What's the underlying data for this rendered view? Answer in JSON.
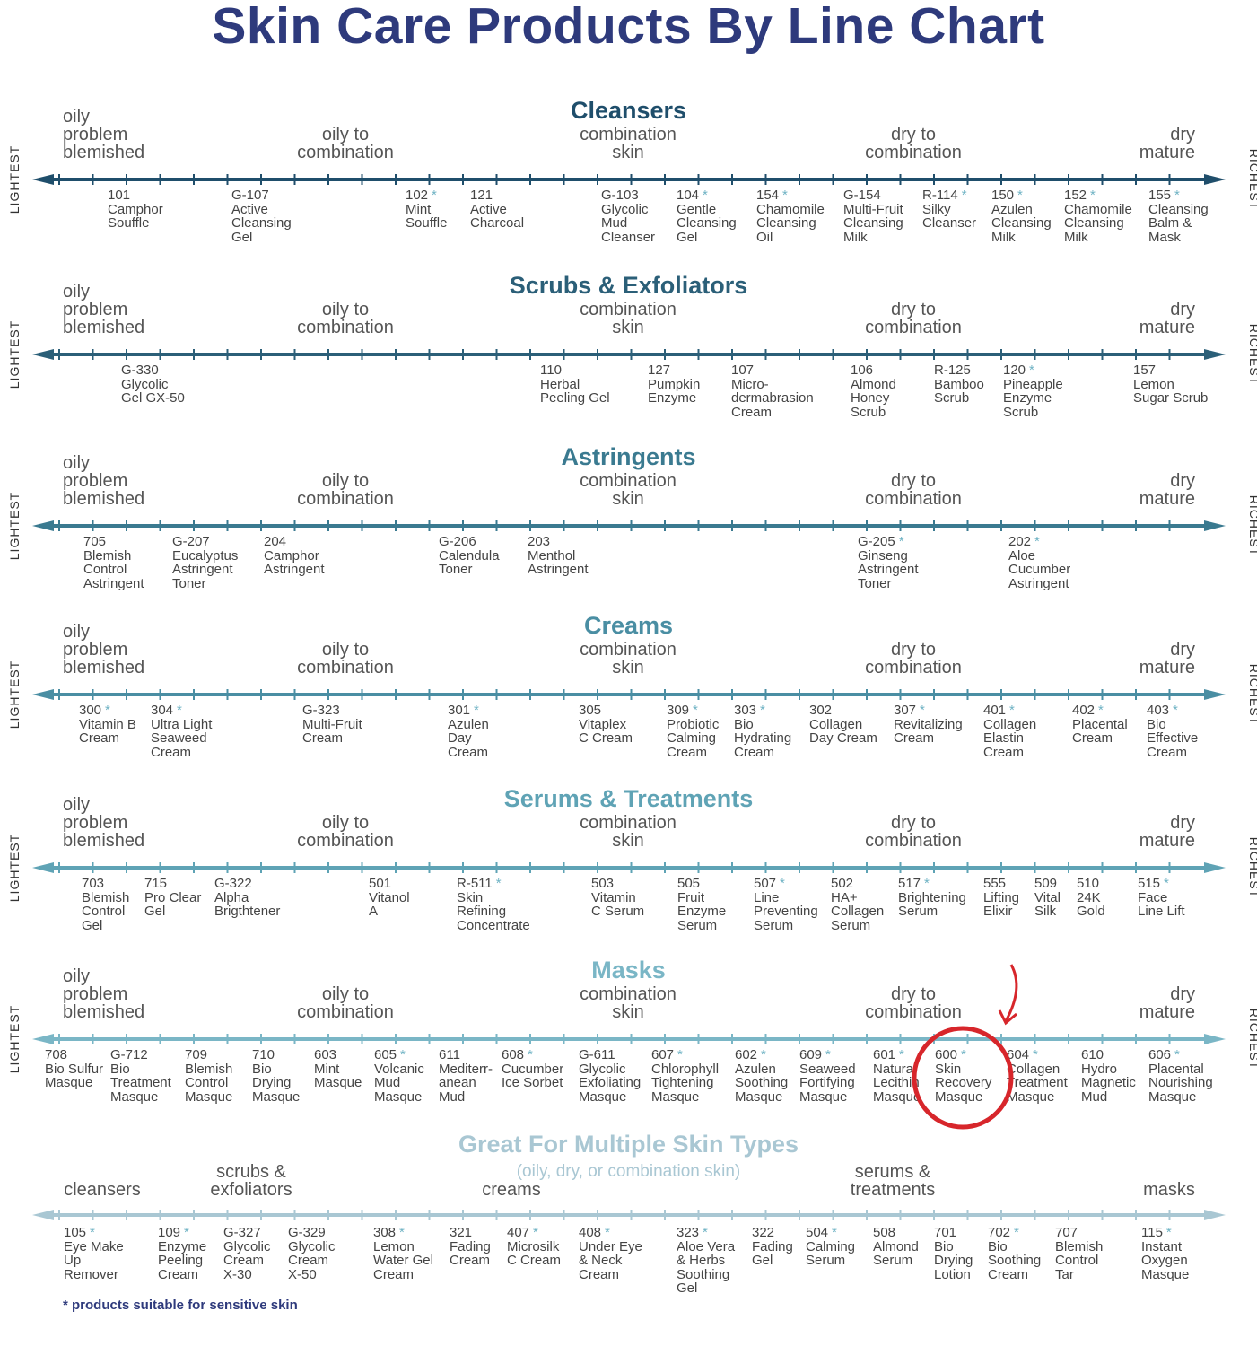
{
  "title": "Skin Care Products By Line Chart",
  "left_end": "LIGHTEST",
  "right_end": "RICHEST",
  "skin_scale": {
    "a": [
      "oily",
      "problem",
      "blemished"
    ],
    "b": [
      "oily to",
      "combination"
    ],
    "c": [
      "combination",
      "skin"
    ],
    "d": [
      "dry to",
      "combination"
    ],
    "e": [
      "dry",
      "mature"
    ]
  },
  "colors": {
    "title": "#2e3a7c",
    "highlight_circle": "#d7262b",
    "star": "#6fb3c4"
  },
  "sections": [
    {
      "name": "Cleansers",
      "color": "#1f4e6b",
      "products": [
        {
          "code": "101",
          "star": false,
          "lines": [
            "Camphor",
            "Souffle"
          ]
        },
        {
          "code": "G-107",
          "star": false,
          "lines": [
            "Active",
            "Cleansing",
            "Gel"
          ]
        },
        {
          "code": "102",
          "star": true,
          "lines": [
            "Mint",
            "Souffle"
          ]
        },
        {
          "code": "121",
          "star": false,
          "lines": [
            "Active",
            "Charcoal"
          ]
        },
        {
          "code": "G-103",
          "star": false,
          "lines": [
            "Glycolic",
            "Mud",
            "Cleanser"
          ]
        },
        {
          "code": "104",
          "star": true,
          "lines": [
            "Gentle",
            "Cleansing",
            "Gel"
          ]
        },
        {
          "code": "154",
          "star": true,
          "lines": [
            "Chamomile",
            "Cleansing",
            "Oil"
          ]
        },
        {
          "code": "G-154",
          "star": false,
          "lines": [
            "Multi-Fruit",
            "Cleansing",
            "Milk"
          ]
        },
        {
          "code": "R-114",
          "star": true,
          "lines": [
            "Silky",
            "Cleanser"
          ]
        },
        {
          "code": "150",
          "star": true,
          "lines": [
            "Azulen",
            "Cleansing",
            "Milk"
          ]
        },
        {
          "code": "152",
          "star": true,
          "lines": [
            "Chamomile",
            "Cleansing",
            "Milk"
          ]
        },
        {
          "code": "155",
          "star": true,
          "lines": [
            "Cleansing",
            "Balm &",
            "Mask"
          ]
        }
      ]
    },
    {
      "name": "Scrubs & Exfoliators",
      "color": "#2b5f78",
      "products": [
        {
          "code": "G-330",
          "star": false,
          "lines": [
            "Glycolic",
            "Gel GX-50"
          ]
        },
        {
          "code": "110",
          "star": false,
          "lines": [
            "Herbal",
            "Peeling Gel"
          ]
        },
        {
          "code": "127",
          "star": false,
          "lines": [
            "Pumpkin",
            "Enzyme"
          ]
        },
        {
          "code": "107",
          "star": false,
          "lines": [
            "Micro-",
            "dermabrasion",
            "Cream"
          ]
        },
        {
          "code": "106",
          "star": false,
          "lines": [
            "Almond",
            "Honey",
            "Scrub"
          ]
        },
        {
          "code": "R-125",
          "star": false,
          "lines": [
            "Bamboo",
            "Scrub"
          ]
        },
        {
          "code": "120",
          "star": true,
          "lines": [
            "Pineapple",
            "Enzyme",
            "Scrub"
          ]
        },
        {
          "code": "157",
          "star": false,
          "lines": [
            "Lemon",
            "Sugar Scrub"
          ]
        }
      ]
    },
    {
      "name": "Astringents",
      "color": "#3a7a90",
      "products": [
        {
          "code": "705",
          "star": false,
          "lines": [
            "Blemish",
            "Control",
            "Astringent"
          ]
        },
        {
          "code": "G-207",
          "star": false,
          "lines": [
            "Eucalyptus",
            "Astringent",
            "Toner"
          ]
        },
        {
          "code": "204",
          "star": false,
          "lines": [
            "Camphor",
            "Astringent"
          ]
        },
        {
          "code": "G-206",
          "star": false,
          "lines": [
            "Calendula",
            "Toner"
          ]
        },
        {
          "code": "203",
          "star": false,
          "lines": [
            "Menthol",
            "Astringent"
          ]
        },
        {
          "code": "G-205",
          "star": true,
          "lines": [
            "Ginseng",
            "Astringent",
            "Toner"
          ]
        },
        {
          "code": "202",
          "star": true,
          "lines": [
            "Aloe",
            "Cucumber",
            "Astringent"
          ]
        }
      ]
    },
    {
      "name": "Creams",
      "color": "#4a8ea3",
      "products": [
        {
          "code": "300",
          "star": true,
          "lines": [
            "Vitamin B",
            "Cream"
          ]
        },
        {
          "code": "304",
          "star": true,
          "lines": [
            "Ultra Light",
            "Seaweed",
            "Cream"
          ]
        },
        {
          "code": "G-323",
          "star": false,
          "lines": [
            "Multi-Fruit",
            "Cream"
          ]
        },
        {
          "code": "301",
          "star": true,
          "lines": [
            "Azulen",
            "Day",
            "Cream"
          ]
        },
        {
          "code": "305",
          "star": false,
          "lines": [
            "Vitaplex",
            "C Cream"
          ]
        },
        {
          "code": "309",
          "star": true,
          "lines": [
            "Probiotic",
            "Calming",
            "Cream"
          ]
        },
        {
          "code": "303",
          "star": true,
          "lines": [
            "Bio",
            "Hydrating",
            "Cream"
          ]
        },
        {
          "code": "302",
          "star": false,
          "lines": [
            "Collagen",
            "Day Cream"
          ]
        },
        {
          "code": "307",
          "star": true,
          "lines": [
            "Revitalizing",
            "Cream"
          ]
        },
        {
          "code": "401",
          "star": true,
          "lines": [
            "Collagen",
            "Elastin",
            "Cream"
          ]
        },
        {
          "code": "402",
          "star": true,
          "lines": [
            "Placental",
            "Cream"
          ]
        },
        {
          "code": "403",
          "star": true,
          "lines": [
            "Bio",
            "Effective",
            "Cream"
          ]
        }
      ]
    },
    {
      "name": "Serums & Treatments",
      "color": "#5fa3b5",
      "products": [
        {
          "code": "703",
          "star": false,
          "lines": [
            "Blemish",
            "Control",
            "Gel"
          ]
        },
        {
          "code": "715",
          "star": false,
          "lines": [
            "Pro Clear",
            "Gel"
          ]
        },
        {
          "code": "G-322",
          "star": false,
          "lines": [
            "Alpha",
            "Brigthtener"
          ]
        },
        {
          "code": "501",
          "star": false,
          "lines": [
            "Vitanol",
            "A"
          ]
        },
        {
          "code": "R-511",
          "star": true,
          "lines": [
            "Skin",
            "Refining",
            "Concentrate"
          ]
        },
        {
          "code": "503",
          "star": false,
          "lines": [
            "Vitamin",
            "C Serum"
          ]
        },
        {
          "code": "505",
          "star": false,
          "lines": [
            "Fruit",
            "Enzyme",
            "Serum"
          ]
        },
        {
          "code": "507",
          "star": true,
          "lines": [
            "Line",
            "Preventing",
            "Serum"
          ]
        },
        {
          "code": "502",
          "star": false,
          "lines": [
            "HA+",
            "Collagen",
            "Serum"
          ]
        },
        {
          "code": "517",
          "star": true,
          "lines": [
            "Brightening",
            "Serum"
          ]
        },
        {
          "code": "555",
          "star": false,
          "lines": [
            "Lifting",
            "Elixir"
          ]
        },
        {
          "code": "509",
          "star": false,
          "lines": [
            "Vital",
            "Silk"
          ]
        },
        {
          "code": "510",
          "star": false,
          "lines": [
            "24K",
            "Gold"
          ]
        },
        {
          "code": "515",
          "star": true,
          "lines": [
            "Face",
            "Line Lift"
          ]
        }
      ]
    },
    {
      "name": "Masks",
      "color": "#7ab6c6",
      "products": [
        {
          "code": "708",
          "star": false,
          "lines": [
            "Bio Sulfur",
            "Masque"
          ]
        },
        {
          "code": "G-712",
          "star": false,
          "lines": [
            "Bio",
            "Treatment",
            "Masque"
          ]
        },
        {
          "code": "709",
          "star": false,
          "lines": [
            "Blemish",
            "Control",
            "Masque"
          ]
        },
        {
          "code": "710",
          "star": false,
          "lines": [
            "Bio",
            "Drying",
            "Masque"
          ]
        },
        {
          "code": "603",
          "star": false,
          "lines": [
            "Mint",
            "Masque"
          ]
        },
        {
          "code": "605",
          "star": true,
          "lines": [
            "Volcanic",
            "Mud",
            "Masque"
          ]
        },
        {
          "code": "611",
          "star": false,
          "lines": [
            "Mediterr-",
            "anean",
            "Mud"
          ]
        },
        {
          "code": "608",
          "star": true,
          "lines": [
            "Cucumber",
            "Ice Sorbet"
          ]
        },
        {
          "code": "G-611",
          "star": false,
          "lines": [
            "Glycolic",
            "Exfoliating",
            "Masque"
          ]
        },
        {
          "code": "607",
          "star": true,
          "lines": [
            "Chlorophyll",
            "Tightening",
            "Masque"
          ]
        },
        {
          "code": "602",
          "star": true,
          "lines": [
            "Azulen",
            "Soothing",
            "Masque"
          ]
        },
        {
          "code": "609",
          "star": true,
          "lines": [
            "Seaweed",
            "Fortifying",
            "Masque"
          ]
        },
        {
          "code": "601",
          "star": true,
          "lines": [
            "Natural",
            "Lecithin",
            "Masque"
          ]
        },
        {
          "code": "600",
          "star": true,
          "lines": [
            "Skin",
            "Recovery",
            "Masque"
          ]
        },
        {
          "code": "604",
          "star": true,
          "lines": [
            "Collagen",
            "Treatment",
            "Masque"
          ]
        },
        {
          "code": "610",
          "star": false,
          "lines": [
            "Hydro",
            "Magnetic",
            "Mud"
          ]
        },
        {
          "code": "606",
          "star": true,
          "lines": [
            "Placental",
            "Nourishing",
            "Masque"
          ]
        }
      ]
    }
  ],
  "multi": {
    "name": "Great For Multiple Skin Types",
    "subtitle": "(oily, dry, or combination skin)",
    "color": "#a9c7d3",
    "labels": {
      "a": [
        "cleansers"
      ],
      "b": [
        "scrubs &",
        "exfoliators"
      ],
      "c": [
        "creams"
      ],
      "d": [
        "serums &",
        "treatments"
      ],
      "e": [
        "masks"
      ]
    },
    "products": [
      {
        "code": "105",
        "star": true,
        "lines": [
          "Eye Make",
          "Up",
          "Remover"
        ]
      },
      {
        "code": "109",
        "star": true,
        "lines": [
          "Enzyme",
          "Peeling",
          "Cream"
        ]
      },
      {
        "code": "G-327",
        "star": false,
        "lines": [
          "Glycolic",
          "Cream",
          "X-30"
        ]
      },
      {
        "code": "G-329",
        "star": false,
        "lines": [
          "Glycolic",
          "Cream",
          "X-50"
        ]
      },
      {
        "code": "308",
        "star": true,
        "lines": [
          "Lemon",
          "Water Gel",
          "Cream"
        ]
      },
      {
        "code": "321",
        "star": false,
        "lines": [
          "Fading",
          "Cream"
        ]
      },
      {
        "code": "407",
        "star": true,
        "lines": [
          "Microsilk",
          "C Cream"
        ]
      },
      {
        "code": "408",
        "star": true,
        "lines": [
          "Under Eye",
          "& Neck",
          "Cream"
        ]
      },
      {
        "code": "323",
        "star": true,
        "lines": [
          "Aloe Vera",
          "& Herbs",
          "Soothing",
          "Gel"
        ]
      },
      {
        "code": "322",
        "star": false,
        "lines": [
          "Fading",
          "Gel"
        ]
      },
      {
        "code": "504",
        "star": true,
        "lines": [
          "Calming",
          "Serum"
        ]
      },
      {
        "code": "508",
        "star": false,
        "lines": [
          "Almond",
          "Serum"
        ]
      },
      {
        "code": "701",
        "star": false,
        "lines": [
          "Bio",
          "Drying",
          "Lotion"
        ]
      },
      {
        "code": "702",
        "star": true,
        "lines": [
          "Bio",
          "Soothing",
          "Cream"
        ]
      },
      {
        "code": "707",
        "star": false,
        "lines": [
          "Blemish",
          "Control",
          "Tar"
        ]
      },
      {
        "code": "115",
        "star": true,
        "lines": [
          "Instant",
          "Oxygen",
          "Masque"
        ]
      }
    ]
  },
  "footnote": "* products suitable for sensitive skin"
}
